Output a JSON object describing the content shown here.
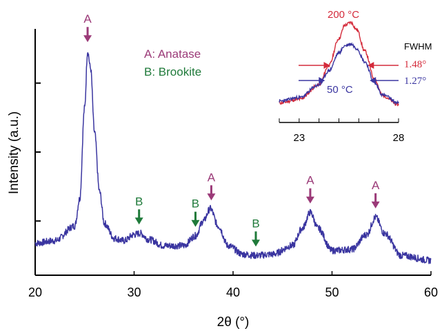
{
  "colors": {
    "main_trace": "#3a35a0",
    "inset_200": "#d42a3a",
    "inset_50": "#3a35a0",
    "anatase": "#9b3a78",
    "brookite": "#1f7a3a"
  },
  "chart_data": [
    {
      "type": "line",
      "title": "",
      "xlabel": "2θ (°)",
      "ylabel": "Intensity (a.u.)",
      "xlim": [
        20,
        60
      ],
      "ylim": [
        0,
        1
      ],
      "x_ticks": [
        "20",
        "30",
        "40",
        "50",
        "60"
      ],
      "x_tick_values": [
        20,
        30,
        40,
        50,
        60
      ],
      "y_tick_values": [
        0.22,
        0.5,
        0.78
      ],
      "grid": false,
      "series": [
        {
          "color": "#3a35a0",
          "x": [
            20,
            22,
            24,
            24.5,
            25,
            25.3,
            25.6,
            26,
            26.5,
            27,
            28,
            29,
            30,
            30.6,
            31.5,
            33,
            35,
            36.2,
            37,
            37.7,
            38.5,
            39.5,
            41,
            42.3,
            44,
            46,
            47,
            47.8,
            48.6,
            50,
            52,
            53.5,
            54.4,
            55.3,
            57,
            60
          ],
          "y": [
            0.13,
            0.14,
            0.2,
            0.31,
            0.68,
            0.91,
            0.84,
            0.58,
            0.34,
            0.21,
            0.15,
            0.14,
            0.165,
            0.17,
            0.145,
            0.12,
            0.12,
            0.16,
            0.22,
            0.27,
            0.2,
            0.12,
            0.085,
            0.08,
            0.085,
            0.12,
            0.19,
            0.255,
            0.19,
            0.1,
            0.105,
            0.165,
            0.235,
            0.17,
            0.08,
            0.06
          ]
        }
      ],
      "annotations": [
        {
          "label": "A",
          "phase": "anatase",
          "x": 25.3
        },
        {
          "label": "B",
          "phase": "brookite",
          "x": 30.5
        },
        {
          "label": "B",
          "phase": "brookite",
          "x": 36.2
        },
        {
          "label": "A",
          "phase": "anatase",
          "x": 37.8
        },
        {
          "label": "B",
          "phase": "brookite",
          "x": 42.3
        },
        {
          "label": "A",
          "phase": "anatase",
          "x": 47.8
        },
        {
          "label": "A",
          "phase": "anatase",
          "x": 54.4
        }
      ],
      "legend": [
        {
          "text": "A: Anatase",
          "phase": "anatase"
        },
        {
          "text": "B: Brookite",
          "phase": "brookite"
        }
      ]
    },
    {
      "type": "line",
      "title": "",
      "xlim": [
        22,
        28
      ],
      "ylim": [
        0,
        1
      ],
      "x_ticks": [
        "23",
        "28"
      ],
      "x_tick_values": [
        23,
        28
      ],
      "series": [
        {
          "name": "200 °C",
          "color": "#d42a3a",
          "x": [
            22,
            23,
            24,
            24.5,
            25,
            25.3,
            25.6,
            25.9,
            26.3,
            26.8,
            27.2,
            28
          ],
          "y": [
            0.08,
            0.12,
            0.28,
            0.5,
            0.8,
            0.95,
            0.98,
            0.9,
            0.66,
            0.34,
            0.16,
            0.06
          ]
        },
        {
          "name": "50 °C",
          "color": "#3a35a0",
          "x": [
            22,
            23,
            24,
            24.5,
            25,
            25.3,
            25.6,
            25.9,
            26.3,
            26.8,
            27.2,
            28
          ],
          "y": [
            0.1,
            0.14,
            0.28,
            0.44,
            0.64,
            0.72,
            0.74,
            0.69,
            0.54,
            0.3,
            0.17,
            0.08
          ]
        }
      ],
      "fwhm": {
        "title": "FWHM",
        "values": [
          {
            "text": "1.48°",
            "series": "200 °C"
          },
          {
            "text": "1.27°",
            "series": "50 °C"
          }
        ]
      }
    }
  ]
}
